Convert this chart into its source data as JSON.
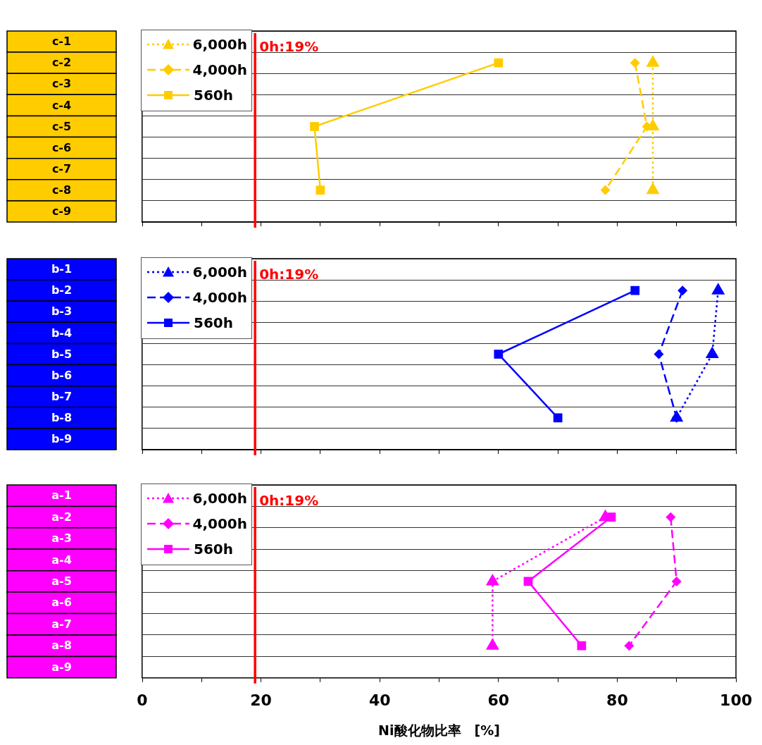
{
  "chart_data": [
    {
      "type": "line",
      "orientation": "horizontal",
      "categories": [
        "c-1",
        "c-2",
        "c-3",
        "c-4",
        "c-5",
        "c-6",
        "c-7",
        "c-8",
        "c-9"
      ],
      "series": [
        {
          "name": "6,000h",
          "color": "#ffcc00",
          "line_style": "dotted",
          "marker": "triangle",
          "values": [
            null,
            86,
            null,
            null,
            86,
            null,
            null,
            86,
            null
          ]
        },
        {
          "name": "4,000h",
          "color": "#ffcc00",
          "line_style": "dashed",
          "marker": "diamond",
          "values": [
            null,
            83,
            null,
            null,
            85,
            null,
            null,
            78,
            null
          ]
        },
        {
          "name": "560h",
          "color": "#ffcc00",
          "line_style": "solid",
          "marker": "square",
          "values": [
            null,
            60,
            null,
            null,
            29,
            null,
            null,
            30,
            null
          ]
        }
      ],
      "xlim": [
        0,
        100
      ],
      "xticks": [
        0,
        {
          "value": 10,
          "label": null
        },
        20,
        {
          "value": 30,
          "label": null
        },
        40,
        {
          "value": 50,
          "label": null
        },
        60,
        {
          "value": 70,
          "label": null
        },
        80,
        {
          "value": 90,
          "label": null
        },
        100
      ],
      "grid": "y",
      "legend": "top left",
      "tick_labels": "y",
      "ref_lines": [
        {
          "axis": "x",
          "value": 19,
          "label": "0h:19%",
          "color": "#ff0000"
        }
      ]
    },
    {
      "type": "line",
      "orientation": "horizontal",
      "categories": [
        "b-1",
        "b-2",
        "b-3",
        "b-4",
        "b-5",
        "b-6",
        "b-7",
        "b-8",
        "b-9"
      ],
      "series": [
        {
          "name": "6,000h",
          "color": "#0000ff",
          "line_style": "dotted",
          "marker": "triangle",
          "values": [
            null,
            97,
            null,
            null,
            96,
            null,
            null,
            90,
            null
          ]
        },
        {
          "name": "4,000h",
          "color": "#0000ff",
          "line_style": "dashed",
          "marker": "diamond",
          "values": [
            null,
            91,
            null,
            null,
            87,
            null,
            null,
            90,
            null
          ]
        },
        {
          "name": "560h",
          "color": "#0000ff",
          "line_style": "solid",
          "marker": "square",
          "values": [
            null,
            83,
            null,
            null,
            60,
            null,
            null,
            70,
            null
          ]
        }
      ],
      "xlim": [
        0,
        100
      ],
      "xticks": [
        0,
        {
          "value": 10,
          "label": null
        },
        20,
        {
          "value": 30,
          "label": null
        },
        40,
        {
          "value": 50,
          "label": null
        },
        60,
        {
          "value": 70,
          "label": null
        },
        80,
        {
          "value": 90,
          "label": null
        },
        100
      ],
      "grid": "y",
      "legend": "top left",
      "tick_labels": "y",
      "ref_lines": [
        {
          "axis": "x",
          "value": 19,
          "label": "0h:19%",
          "color": "#ff0000"
        }
      ]
    },
    {
      "type": "line",
      "orientation": "horizontal",
      "categories": [
        "a-1",
        "a-2",
        "a-3",
        "a-4",
        "a-5",
        "a-6",
        "a-7",
        "a-8",
        "a-9"
      ],
      "series": [
        {
          "name": "6,000h",
          "color": "#ff00ff",
          "line_style": "dotted",
          "marker": "triangle",
          "values": [
            null,
            78,
            null,
            null,
            59,
            null,
            null,
            59,
            null
          ]
        },
        {
          "name": "4,000h",
          "color": "#ff00ff",
          "line_style": "dashed",
          "marker": "diamond",
          "values": [
            null,
            89,
            null,
            null,
            90,
            null,
            null,
            82,
            null
          ]
        },
        {
          "name": "560h",
          "color": "#ff00ff",
          "line_style": "solid",
          "marker": "square",
          "values": [
            null,
            79,
            null,
            null,
            65,
            null,
            null,
            74,
            null
          ]
        }
      ],
      "xlim": [
        0,
        100
      ],
      "xticks": [
        0,
        {
          "value": 10,
          "label": null
        },
        20,
        {
          "value": 30,
          "label": null
        },
        40,
        {
          "value": 50,
          "label": null
        },
        60,
        {
          "value": 70,
          "label": null
        },
        80,
        {
          "value": 90,
          "label": null
        },
        100
      ],
      "xlabel": "Ni酸化物比率　[%]",
      "grid": "y",
      "legend": "top left",
      "ref_lines": [
        {
          "axis": "x",
          "value": 19,
          "label": "0h:19%",
          "color": "#ff0000"
        }
      ]
    }
  ]
}
